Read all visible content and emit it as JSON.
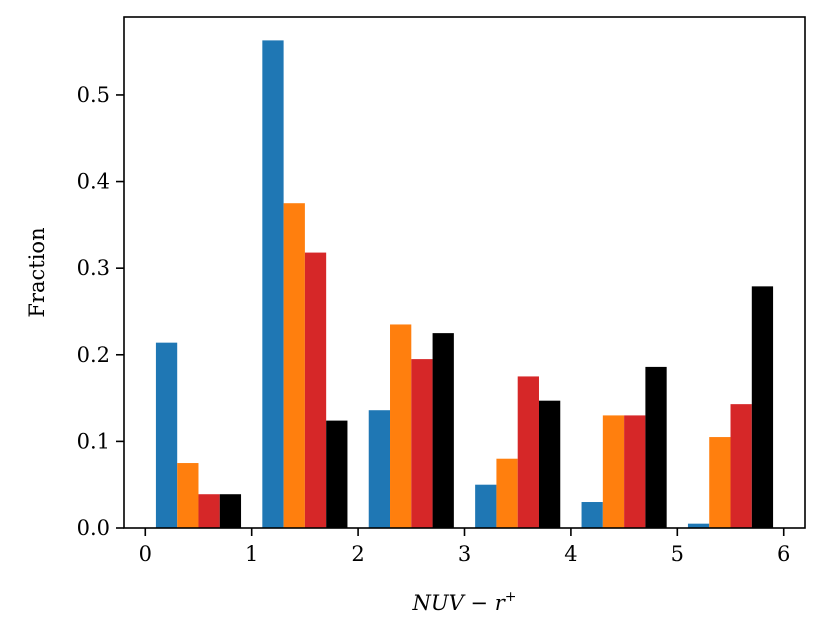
{
  "chart_data": {
    "type": "bar",
    "xlabel_parts": [
      "NUV",
      " − ",
      "r",
      "+"
    ],
    "ylabel": "Fraction",
    "xlim": [
      -0.2,
      6.2
    ],
    "ylim": [
      0,
      0.59
    ],
    "xticks": [
      0,
      1,
      2,
      3,
      4,
      5,
      6
    ],
    "yticks": [
      0.0,
      0.1,
      0.2,
      0.3,
      0.4,
      0.5
    ],
    "ytick_labels": [
      "0.0",
      "0.1",
      "0.2",
      "0.3",
      "0.4",
      "0.5"
    ],
    "bin_edges": [
      0,
      1,
      2,
      3,
      4,
      5,
      6
    ],
    "series": [
      {
        "color": "#1f77b4",
        "values": [
          0.214,
          0.563,
          0.136,
          0.05,
          0.03,
          0.005
        ]
      },
      {
        "color": "#ff7f0e",
        "values": [
          0.075,
          0.375,
          0.235,
          0.08,
          0.13,
          0.105
        ]
      },
      {
        "color": "#d62728",
        "values": [
          0.039,
          0.318,
          0.195,
          0.175,
          0.13,
          0.143
        ]
      },
      {
        "color": "#000000",
        "values": [
          0.039,
          0.124,
          0.225,
          0.147,
          0.186,
          0.279
        ]
      }
    ]
  }
}
